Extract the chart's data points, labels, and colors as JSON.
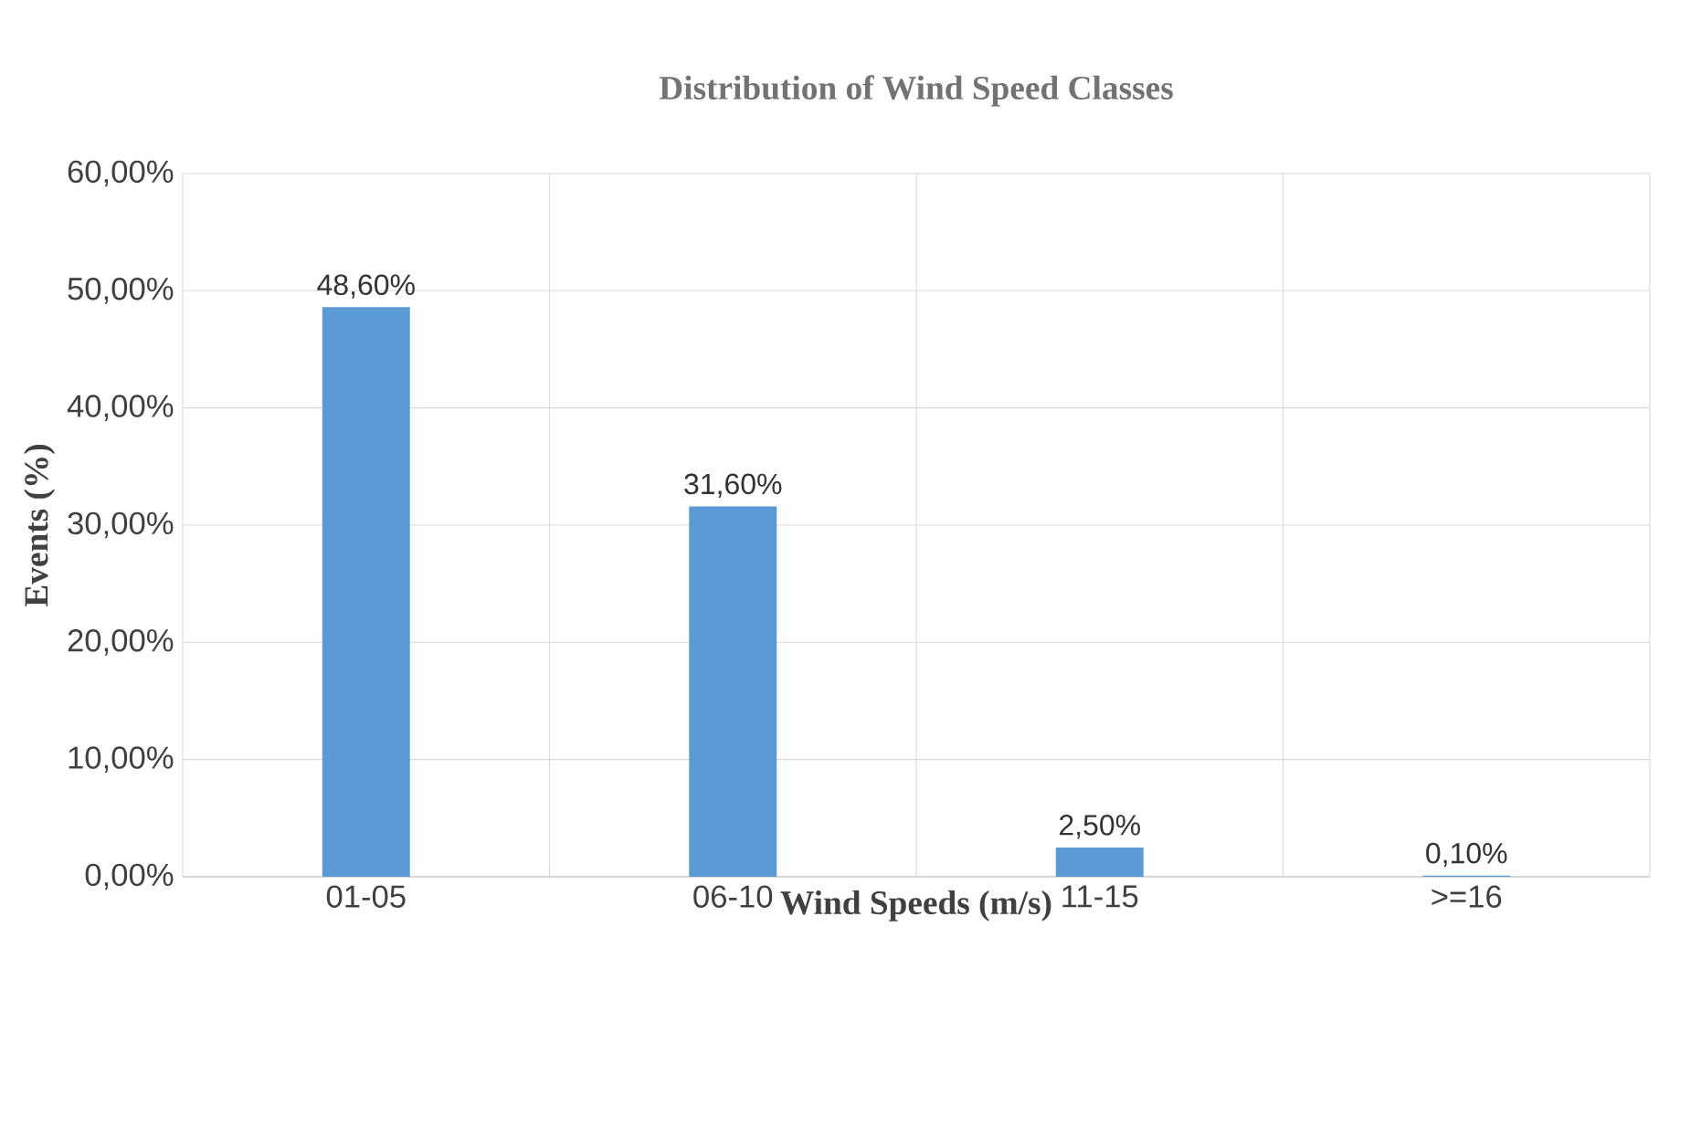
{
  "chart_data": {
    "type": "bar",
    "title": "Distribution of Wind Speed Classes",
    "xlabel": "Wind Speeds (m/s)",
    "ylabel": "Events (%)",
    "categories": [
      "01-05",
      "06-10",
      "11-15",
      ">=16"
    ],
    "values": [
      48.6,
      31.6,
      2.5,
      0.1
    ],
    "value_labels": [
      "48,60%",
      "31,60%",
      "2,50%",
      "0,10%"
    ],
    "color": "#5b9bd5",
    "ylim": [
      0,
      60
    ],
    "yticks": [
      {
        "value": 0,
        "label": "0,00%"
      },
      {
        "value": 10,
        "label": "10,00%"
      },
      {
        "value": 20,
        "label": "20,00%"
      },
      {
        "value": 30,
        "label": "30,00%"
      },
      {
        "value": 40,
        "label": "40,00%"
      },
      {
        "value": 50,
        "label": "50,00%"
      },
      {
        "value": 60,
        "label": "60,00%"
      }
    ],
    "grid": true
  }
}
